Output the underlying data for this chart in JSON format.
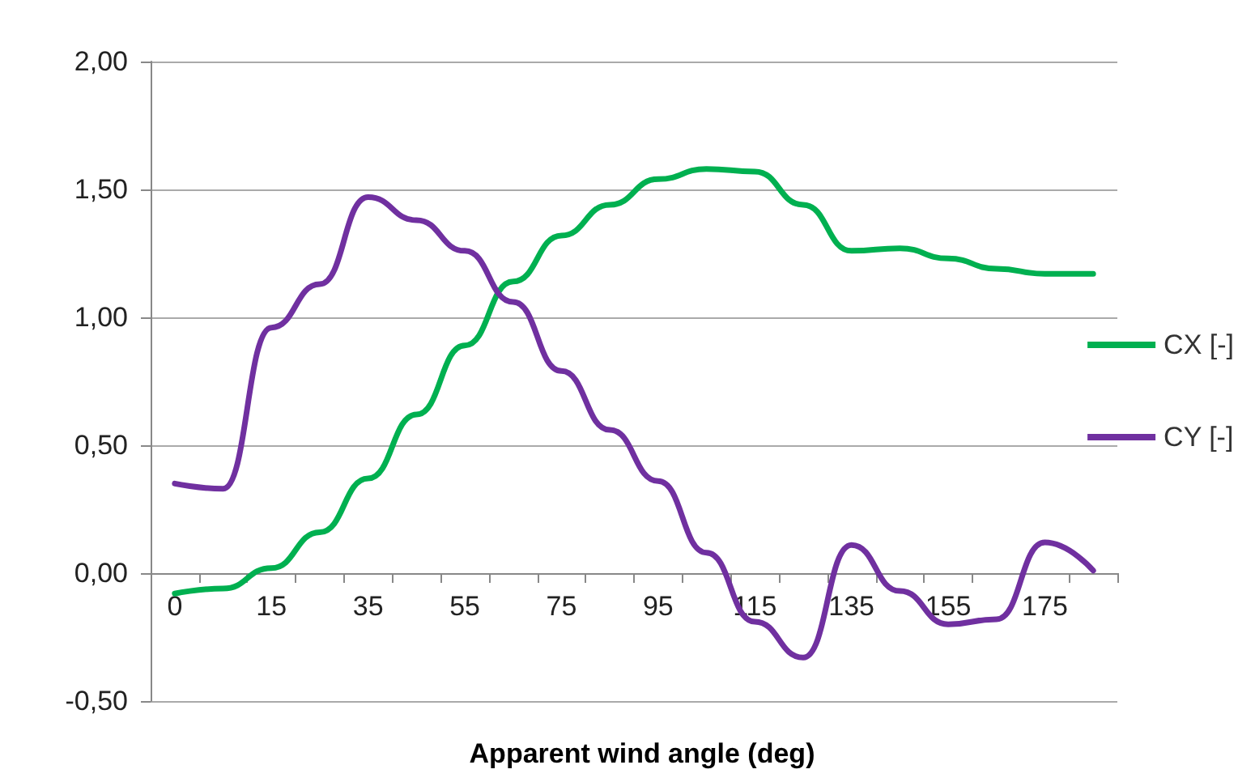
{
  "chart_data": {
    "type": "line",
    "xlabel": "Apparent wind angle (deg)",
    "categories": [
      "0",
      null,
      "15",
      null,
      "35",
      null,
      "55",
      null,
      "75",
      null,
      "95",
      null,
      "115",
      null,
      "135",
      null,
      "155",
      null,
      "175",
      null
    ],
    "series": [
      {
        "name": "CX [-]",
        "color": "#00b050",
        "values": [
          -0.08,
          -0.06,
          0.02,
          0.16,
          0.37,
          0.62,
          0.89,
          1.14,
          1.32,
          1.44,
          1.54,
          1.58,
          1.57,
          1.44,
          1.26,
          1.27,
          1.23,
          1.19,
          1.17,
          1.17
        ]
      },
      {
        "name": "CY [-]",
        "color": "#7030a0",
        "values": [
          0.35,
          0.33,
          0.96,
          1.13,
          1.47,
          1.38,
          1.26,
          1.06,
          0.79,
          0.56,
          0.36,
          0.08,
          -0.19,
          -0.33,
          0.11,
          -0.07,
          -0.2,
          -0.18,
          0.12,
          0.01
        ]
      }
    ],
    "ylim": [
      -0.5,
      2
    ],
    "yticks": [
      {
        "value": -0.5,
        "label": "-0,50"
      },
      {
        "value": 0,
        "label": "0,00"
      },
      {
        "value": 0.5,
        "label": "0,50"
      },
      {
        "value": 1,
        "label": "1,00"
      },
      {
        "value": 1.5,
        "label": "1,50"
      },
      {
        "value": 2,
        "label": "2,00"
      }
    ],
    "grid": "y",
    "legend": "right",
    "marker": "none",
    "line_style": "solid"
  }
}
